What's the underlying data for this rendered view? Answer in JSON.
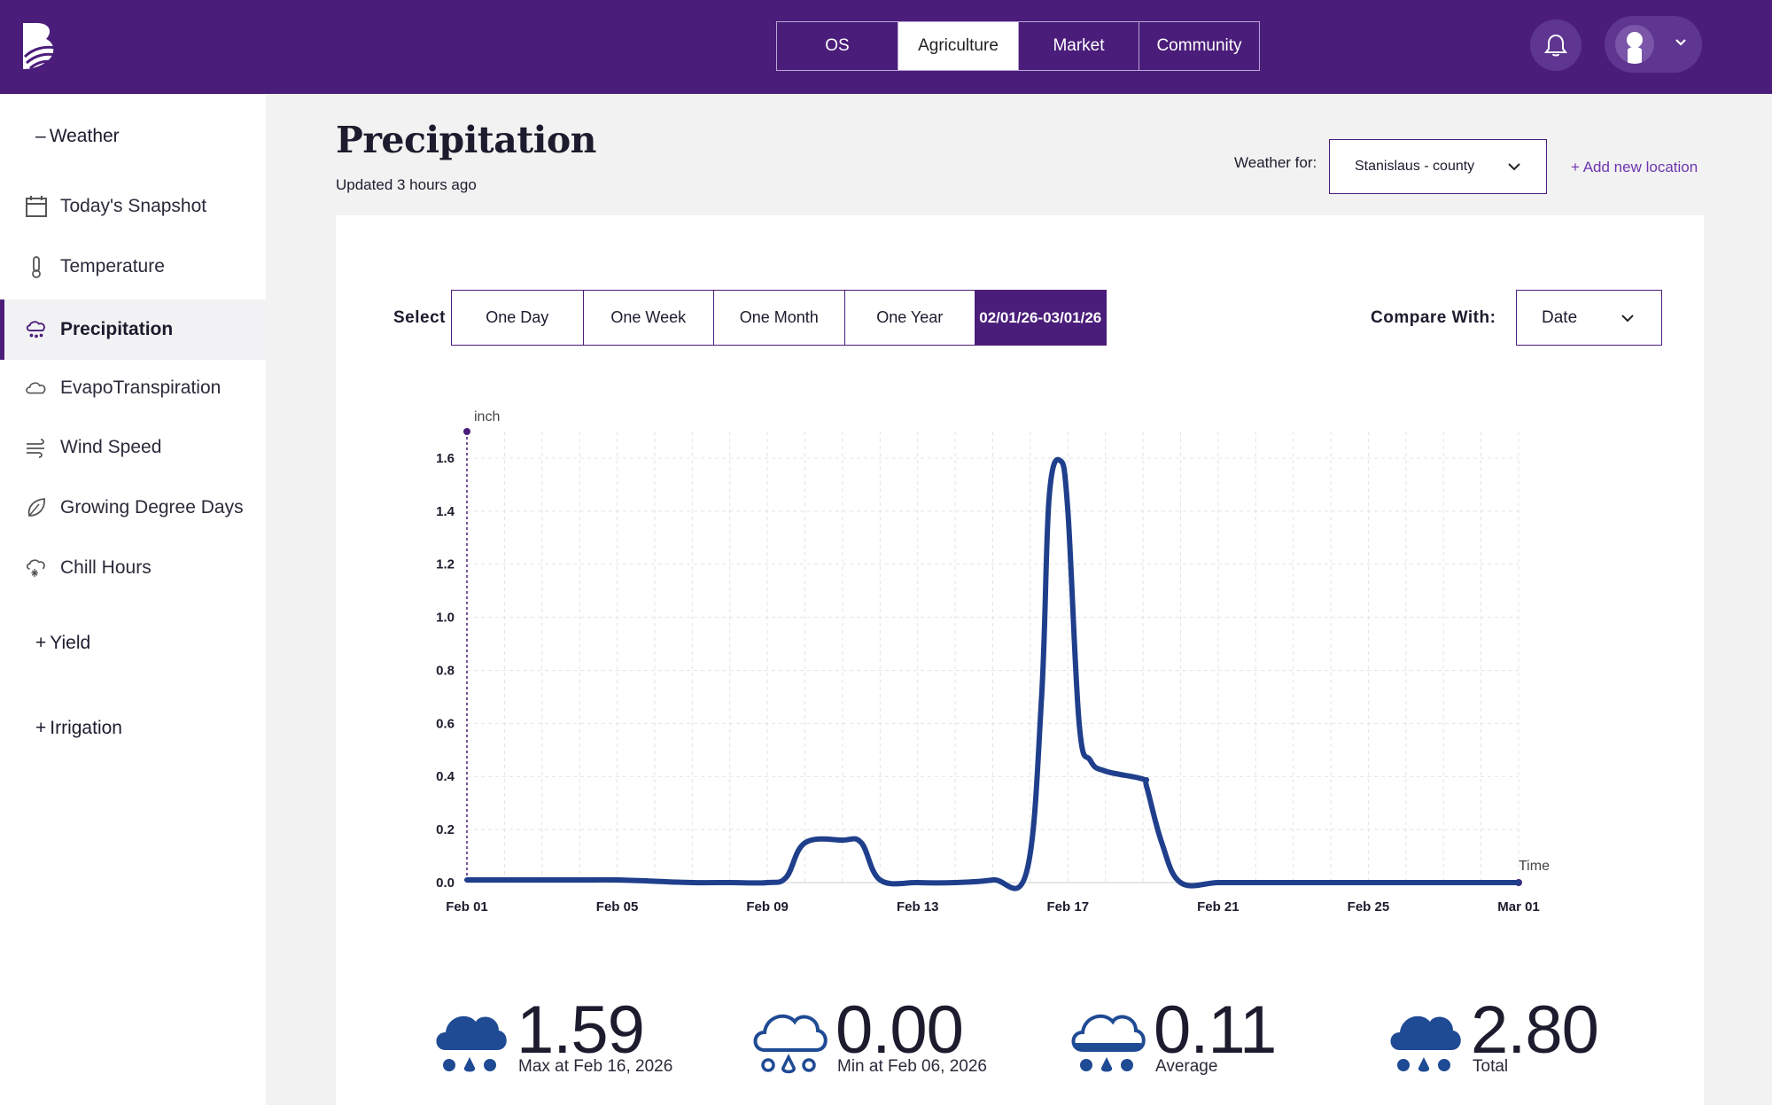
{
  "topnav": {
    "tabs": [
      {
        "label": "OS"
      },
      {
        "label": "Agriculture"
      },
      {
        "label": "Market"
      },
      {
        "label": "Community"
      }
    ],
    "active_tab": "Agriculture"
  },
  "sidebar": {
    "weather_section": {
      "prefix": "–",
      "label": "Weather"
    },
    "items": [
      {
        "label": "Today's Snapshot",
        "icon": "calendar-icon"
      },
      {
        "label": "Temperature",
        "icon": "thermometer-icon"
      },
      {
        "label": "Precipitation",
        "icon": "rain-cloud-icon"
      },
      {
        "label": "EvapoTranspiration",
        "icon": "cloud-icon"
      },
      {
        "label": "Wind Speed",
        "icon": "wind-icon"
      },
      {
        "label": "Growing Degree Days",
        "icon": "leaf-icon"
      },
      {
        "label": "Chill Hours",
        "icon": "snow-cloud-icon"
      }
    ],
    "active_item": "Precipitation",
    "yield_section": {
      "prefix": "+",
      "label": "Yield"
    },
    "irrigation_section": {
      "prefix": "+",
      "label": "Irrigation"
    }
  },
  "header": {
    "title": "Precipitation",
    "updated": "Updated 3 hours ago",
    "weather_for_label": "Weather for:",
    "location_value": "Stanislaus - county",
    "add_location": "+ Add new location"
  },
  "controls": {
    "select_label": "Select",
    "range_tabs": [
      "One Day",
      "One Week",
      "One Month",
      "One Year",
      "02/01/26-03/01/26"
    ],
    "active_range": "02/01/26-03/01/26",
    "compare_label": "Compare With:",
    "compare_value": "Date"
  },
  "chart_data": {
    "type": "line",
    "ylabel": "inch",
    "xlabel": "Time",
    "ylim": [
      0,
      1.7
    ],
    "yticks": [
      "0.0",
      "0.2",
      "0.4",
      "0.6",
      "0.8",
      "1.0",
      "1.2",
      "1.4",
      "1.6"
    ],
    "xticks": [
      {
        "label": "Feb 01",
        "day": 0
      },
      {
        "label": "Feb 05",
        "day": 4
      },
      {
        "label": "Feb 09",
        "day": 8
      },
      {
        "label": "Feb 13",
        "day": 12
      },
      {
        "label": "Feb 17",
        "day": 16
      },
      {
        "label": "Feb 21",
        "day": 20
      },
      {
        "label": "Feb 25",
        "day": 24
      },
      {
        "label": "Mar 01",
        "day": 28
      }
    ],
    "grid": true,
    "series": [
      {
        "color": "#1f3f8c",
        "x": [
          0,
          1,
          2,
          3,
          4,
          5,
          6,
          7,
          8,
          8.5,
          9,
          10,
          10.5,
          11,
          12,
          13,
          14,
          14.9,
          15.3,
          15.5,
          15.8,
          16.0,
          16.3,
          16.6,
          17,
          18,
          18.1,
          18.5,
          19,
          20,
          21,
          22,
          23,
          24,
          25,
          26,
          27,
          28
        ],
        "values": [
          0.01,
          0.01,
          0.01,
          0.01,
          0.01,
          0.005,
          0.0,
          0.0,
          0.0,
          0.02,
          0.15,
          0.16,
          0.15,
          0.01,
          0.0,
          0.0,
          0.01,
          0.04,
          0.7,
          1.45,
          1.59,
          1.4,
          0.6,
          0.46,
          0.42,
          0.39,
          0.36,
          0.15,
          0.0,
          0.0,
          0.0,
          0.0,
          0.0,
          0.0,
          0.0,
          0.0,
          0.0,
          0.0
        ]
      }
    ]
  },
  "stats": [
    {
      "value": "1.59",
      "caption": "Max at Feb 16, 2026",
      "icon": "heavy-rain-icon",
      "filled": true
    },
    {
      "value": "0.00",
      "caption": "Min at Feb 06, 2026",
      "icon": "light-rain-icon",
      "filled": false
    },
    {
      "value": "0.11",
      "caption": "Average",
      "icon": "moderate-rain-icon",
      "filled": "half"
    },
    {
      "value": "2.80",
      "caption": "Total",
      "icon": "heavy-rain-icon",
      "filled": true
    }
  ],
  "colors": {
    "brand_purple": "#4b1d7a",
    "line_blue": "#1f3f8c",
    "link_purple": "#6d35b0"
  }
}
